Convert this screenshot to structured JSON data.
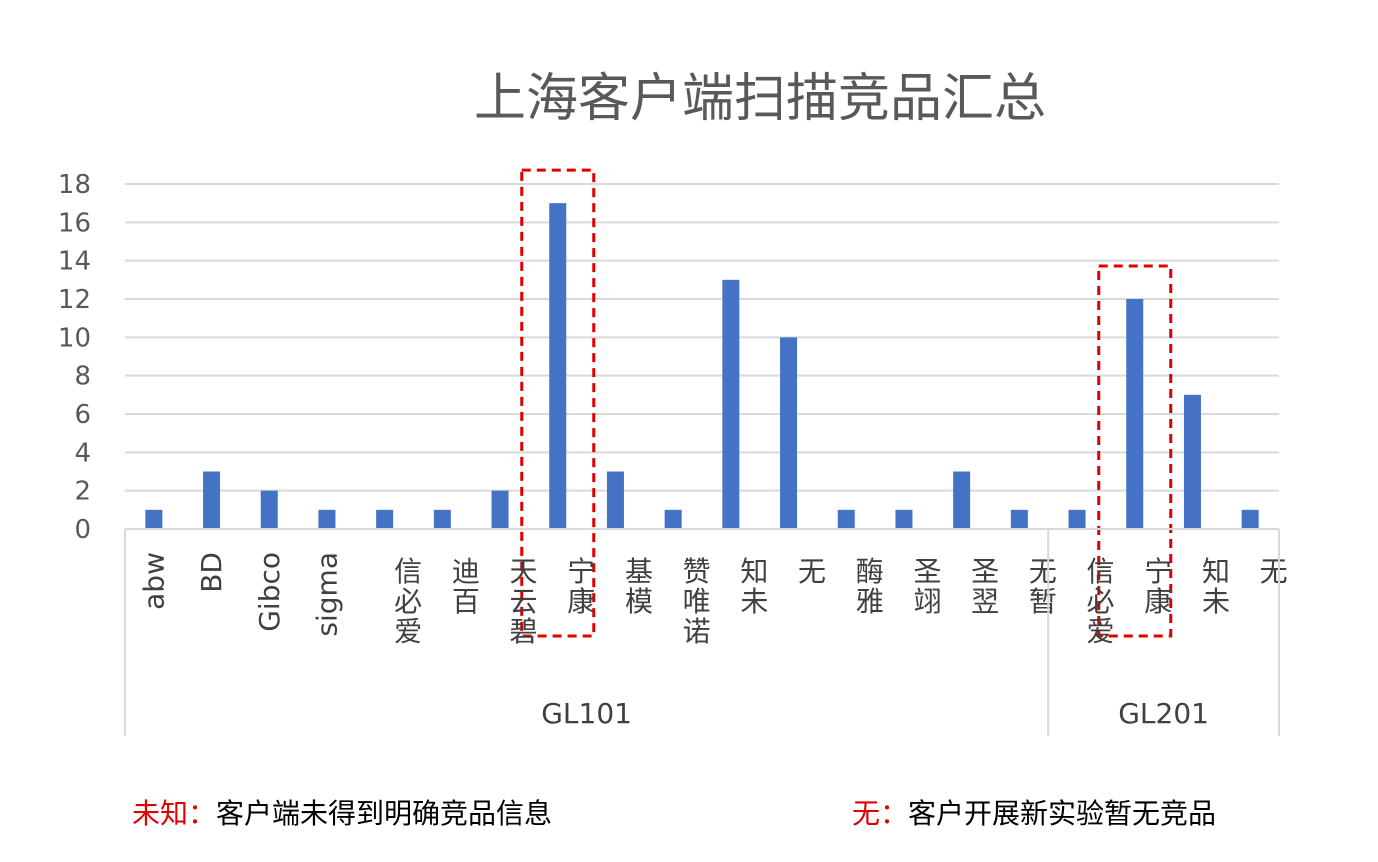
{
  "chart_data": {
    "type": "bar",
    "title": "上海客户端扫描竞品汇总",
    "ylim": [
      0,
      18
    ],
    "yticks": [
      0,
      2,
      4,
      6,
      8,
      10,
      12,
      14,
      16,
      18
    ],
    "grid": true,
    "bar_color": "#4472c4",
    "grid_color": "#d9d9d9",
    "highlight_color": "#e00000",
    "groups": [
      {
        "name": "GL101",
        "categories": [
          "abw",
          "BD",
          "Gibco",
          "sigma",
          "爱必信",
          "百迪",
          "碧云天",
          "康宁",
          "模基",
          "诺唯赞",
          "未知",
          "无",
          "雅酶",
          "翊圣",
          "翌圣",
          "暂无"
        ],
        "values": [
          1,
          3,
          2,
          1,
          1,
          1,
          2,
          17,
          3,
          1,
          13,
          10,
          1,
          1,
          3,
          1
        ]
      },
      {
        "name": "GL201",
        "categories": [
          "爱必信",
          "康宁",
          "未知",
          "无"
        ],
        "values": [
          1,
          12,
          7,
          1
        ]
      }
    ],
    "highlighted": [
      {
        "group": "GL101",
        "category": "康宁"
      },
      {
        "group": "GL201",
        "category": "康宁"
      }
    ]
  },
  "notes": {
    "left_key": "未知：",
    "left_text": "客户端未得到明确竞品信息",
    "right_key": "无：",
    "right_text": "客户开展新实验暂无竞品"
  }
}
